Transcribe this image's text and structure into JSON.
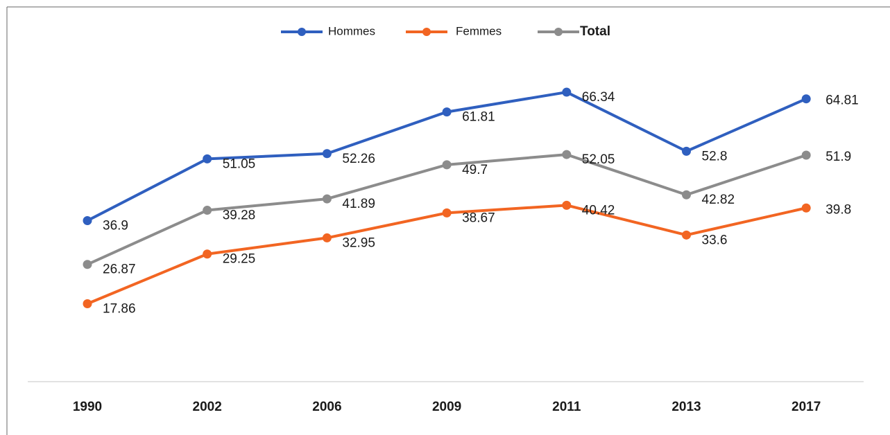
{
  "chart_data": {
    "type": "line",
    "categories": [
      "1990",
      "2002",
      "2006",
      "2009",
      "2011",
      "2013",
      "2017"
    ],
    "series": [
      {
        "name": "Hommes",
        "color": "#2f5fbf",
        "values": [
          36.9,
          51.05,
          52.26,
          61.81,
          66.34,
          52.8,
          64.81
        ]
      },
      {
        "name": "Femmes",
        "color": "#f26522",
        "values": [
          17.86,
          29.25,
          32.95,
          38.67,
          40.42,
          33.6,
          39.8
        ]
      },
      {
        "name": "Total",
        "color": "#8c8c8c",
        "values": [
          26.87,
          39.28,
          41.89,
          49.7,
          52.05,
          42.82,
          51.9
        ]
      }
    ]
  }
}
